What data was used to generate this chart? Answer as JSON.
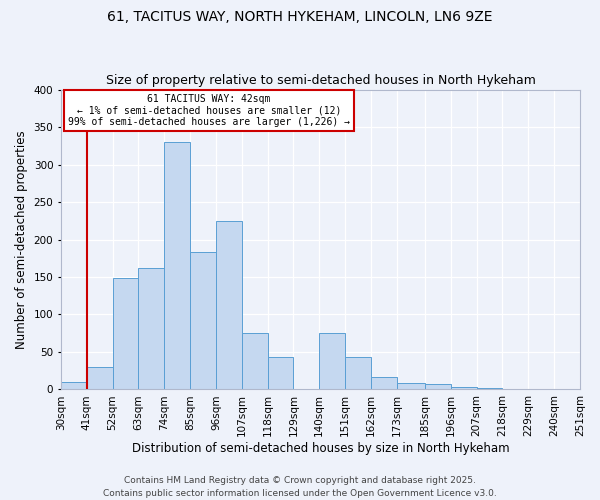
{
  "title": "61, TACITUS WAY, NORTH HYKEHAM, LINCOLN, LN6 9ZE",
  "subtitle": "Size of property relative to semi-detached houses in North Hykeham",
  "xlabel": "Distribution of semi-detached houses by size in North Hykeham",
  "ylabel": "Number of semi-detached properties",
  "bin_labels": [
    "30sqm",
    "41sqm",
    "52sqm",
    "63sqm",
    "74sqm",
    "85sqm",
    "96sqm",
    "107sqm",
    "118sqm",
    "129sqm",
    "140sqm",
    "151sqm",
    "162sqm",
    "173sqm",
    "185sqm",
    "196sqm",
    "207sqm",
    "218sqm",
    "229sqm",
    "240sqm",
    "251sqm"
  ],
  "bin_edges": [
    30,
    41,
    52,
    63,
    74,
    85,
    96,
    107,
    118,
    129,
    140,
    151,
    162,
    173,
    185,
    196,
    207,
    218,
    229,
    240,
    251
  ],
  "bar_heights": [
    10,
    30,
    148,
    162,
    330,
    183,
    225,
    75,
    43,
    0,
    75,
    43,
    17,
    8,
    7,
    3,
    2,
    1,
    1,
    0
  ],
  "bar_color": "#c5d8f0",
  "bar_edge_color": "#5a9fd4",
  "property_line_x": 41,
  "property_line_color": "#cc0000",
  "ylim": [
    0,
    400
  ],
  "yticks": [
    0,
    50,
    100,
    150,
    200,
    250,
    300,
    350,
    400
  ],
  "annotation_title": "61 TACITUS WAY: 42sqm",
  "annotation_line1": "← 1% of semi-detached houses are smaller (12)",
  "annotation_line2": "99% of semi-detached houses are larger (1,226) →",
  "footer1": "Contains HM Land Registry data © Crown copyright and database right 2025.",
  "footer2": "Contains public sector information licensed under the Open Government Licence v3.0.",
  "background_color": "#eef2fa",
  "plot_background_color": "#eef2fa",
  "title_fontsize": 10,
  "subtitle_fontsize": 9,
  "axis_label_fontsize": 8.5,
  "tick_fontsize": 7.5,
  "footer_fontsize": 6.5
}
